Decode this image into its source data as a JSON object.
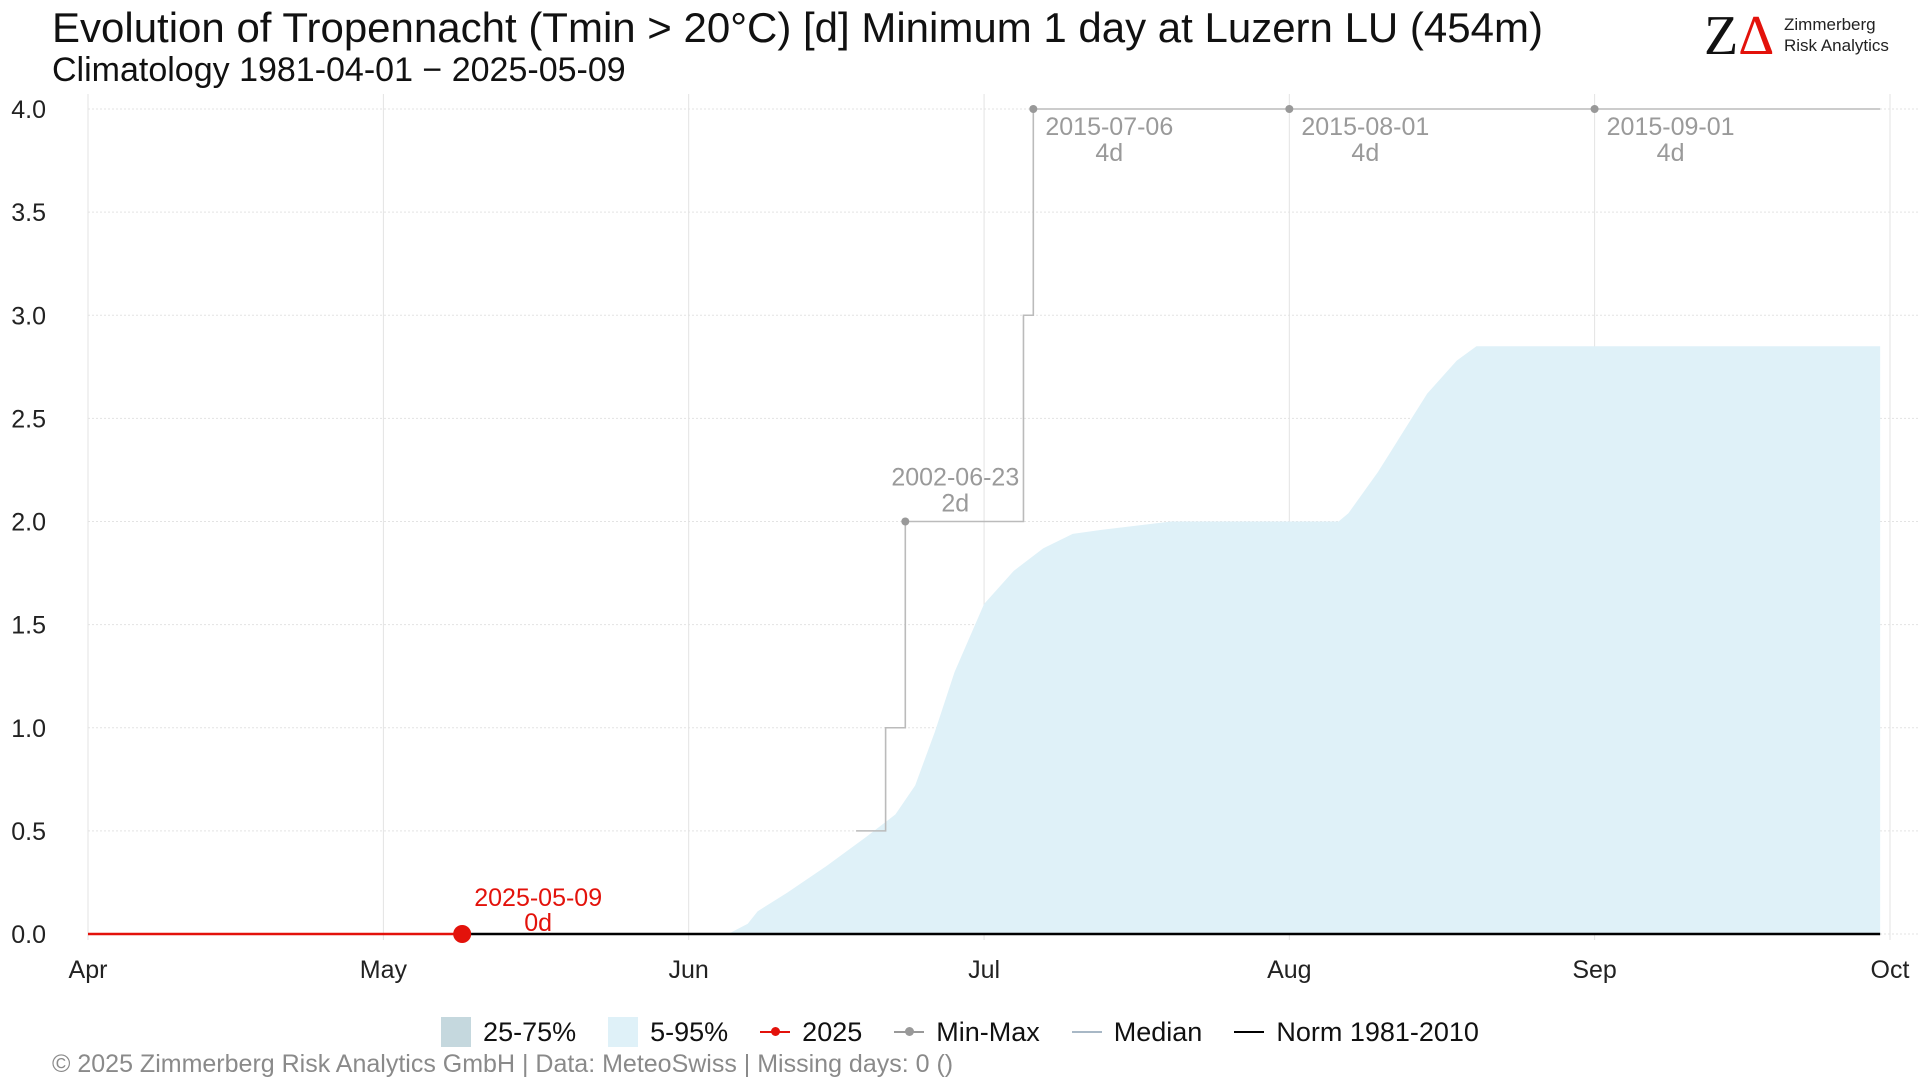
{
  "header": {
    "title": "Evolution of Tropennacht (Tmin > 20°C) [d] Minimum 1 day at Luzern  LU (454m)",
    "subtitle": "Climatology 1981-04-01 − 2025-05-09"
  },
  "logo": {
    "line1": "Zimmerberg",
    "line2": "Risk Analytics"
  },
  "legend": {
    "items": [
      {
        "label": "25-75%",
        "color": "#c5d8de",
        "kind": "box"
      },
      {
        "label": "5-95%",
        "color": "#dff1f8",
        "kind": "box"
      },
      {
        "label": "2025",
        "color": "#e3120b",
        "kind": "line-dot"
      },
      {
        "label": "Min-Max",
        "color": "#999999",
        "kind": "line-dot"
      },
      {
        "label": "Median",
        "color": "#a8b8c6",
        "kind": "line"
      },
      {
        "label": "Norm 1981-2010",
        "color": "#000000",
        "kind": "line"
      }
    ]
  },
  "footer": "©  2025 Zimmerberg Risk Analytics GmbH | Data: MeteoSwiss | Missing days: 0 ()",
  "chart_data": {
    "type": "area",
    "title": "Evolution of Tropennacht (Tmin > 20°C) [d] Minimum 1 day at Luzern  LU (454m)",
    "subtitle": "Climatology 1981-04-01 − 2025-05-09",
    "xlabel": "",
    "ylabel": "",
    "xlim": [
      "2025-04-01",
      "2025-10-01"
    ],
    "ylim": [
      0,
      4
    ],
    "x_ticks": [
      {
        "date": "2025-04-01",
        "label": "Apr"
      },
      {
        "date": "2025-05-01",
        "label": "May"
      },
      {
        "date": "2025-06-01",
        "label": "Jun"
      },
      {
        "date": "2025-07-01",
        "label": "Jul"
      },
      {
        "date": "2025-08-01",
        "label": "Aug"
      },
      {
        "date": "2025-09-01",
        "label": "Sep"
      },
      {
        "date": "2025-10-01",
        "label": "Oct"
      }
    ],
    "y_ticks": [
      {
        "value": 0,
        "label": "0.0"
      },
      {
        "value": 0.5,
        "label": "0.5"
      },
      {
        "value": 1,
        "label": "1.0"
      },
      {
        "value": 1.5,
        "label": "1.5"
      },
      {
        "value": 2,
        "label": "2.0"
      },
      {
        "value": 2.5,
        "label": "2.5"
      },
      {
        "value": 3,
        "label": "3.0"
      },
      {
        "value": 3.5,
        "label": "3.5"
      },
      {
        "value": 4,
        "label": "4.0"
      }
    ],
    "grid": true,
    "legend_position": "bottom",
    "series": [
      {
        "name": "5-95%",
        "kind": "band",
        "color": "#dff1f8",
        "x": [
          "2025-06-05",
          "2025-06-07",
          "2025-06-08",
          "2025-06-11",
          "2025-06-15",
          "2025-06-19",
          "2025-06-22",
          "2025-06-24",
          "2025-06-26",
          "2025-06-28",
          "2025-07-01",
          "2025-07-04",
          "2025-07-07",
          "2025-07-10",
          "2025-07-13",
          "2025-07-20",
          "2025-08-01",
          "2025-08-06",
          "2025-08-07",
          "2025-08-10",
          "2025-08-15",
          "2025-08-18",
          "2025-08-20",
          "2025-08-31",
          "2025-09-30"
        ],
        "upper": [
          0,
          0.05,
          0.11,
          0.2,
          0.33,
          0.47,
          0.58,
          0.72,
          0.98,
          1.27,
          1.6,
          1.76,
          1.87,
          1.94,
          1.96,
          2.0,
          2.0,
          2.0,
          2.04,
          2.24,
          2.62,
          2.78,
          2.85,
          2.85,
          2.85
        ],
        "lower": 0
      },
      {
        "name": "Min-Max",
        "kind": "step",
        "color": "#bbbbbb",
        "x": [
          "2025-06-18",
          "2025-06-21",
          "2025-06-23",
          "2025-07-05",
          "2025-07-06",
          "2025-09-30"
        ],
        "y": [
          0.5,
          1,
          2,
          3,
          4,
          4
        ],
        "markers": [
          {
            "x": "2025-06-23",
            "y": 2,
            "label_date": "2002-06-23",
            "label_value": "2d"
          },
          {
            "x": "2025-07-06",
            "y": 4,
            "label_date": "2015-07-06",
            "label_value": "4d"
          },
          {
            "x": "2025-08-01",
            "y": 4,
            "label_date": "2015-08-01",
            "label_value": "4d"
          },
          {
            "x": "2025-09-01",
            "y": 4,
            "label_date": "2015-09-01",
            "label_value": "4d"
          }
        ]
      },
      {
        "name": "Norm 1981-2010",
        "kind": "line",
        "color": "#000000",
        "x": [
          "2025-05-09",
          "2025-09-30"
        ],
        "y": [
          0,
          0
        ]
      },
      {
        "name": "2025",
        "kind": "line",
        "color": "#e3120b",
        "x": [
          "2025-04-01",
          "2025-05-09"
        ],
        "y": [
          0,
          0
        ],
        "current": {
          "x": "2025-05-09",
          "y": 0,
          "label_date": "2025-05-09",
          "label_value": "0d"
        }
      }
    ]
  }
}
